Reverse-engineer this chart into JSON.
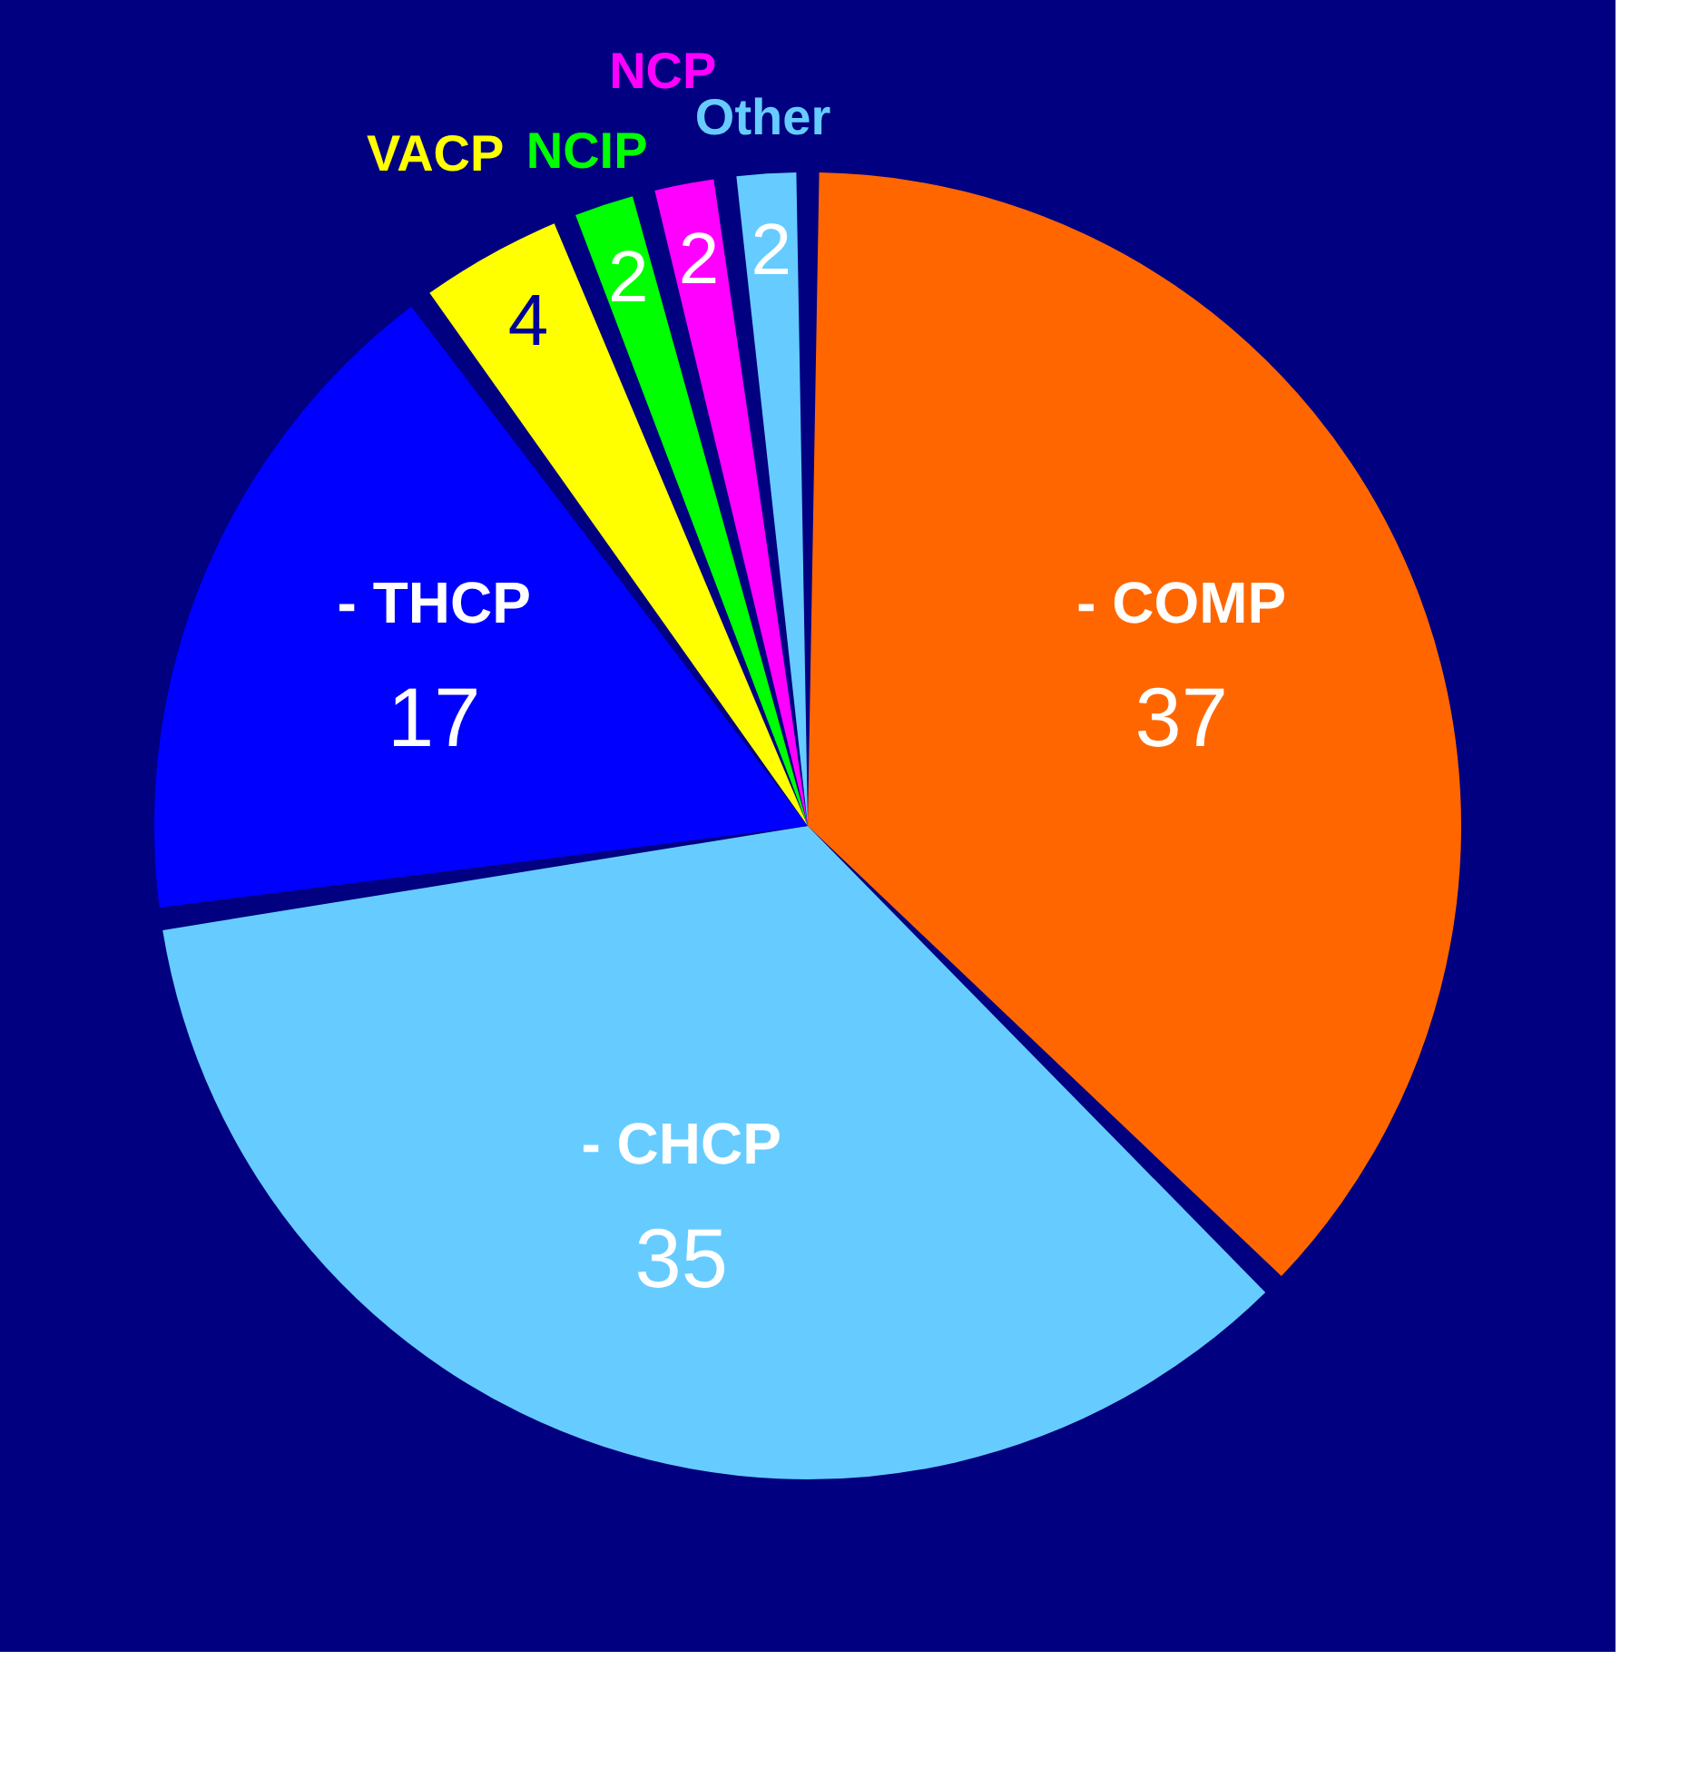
{
  "chart_data": {
    "type": "pie",
    "categories": [
      "- COMP",
      "- CHCP",
      "- THCP",
      "VACP",
      "NCIP",
      "NCP",
      "Other"
    ],
    "values": [
      37,
      35,
      17,
      4,
      2,
      2,
      2
    ],
    "colors": [
      "#ff6600",
      "#66ccff",
      "#0000ff",
      "#ffff00",
      "#00ff00",
      "#ff00ff",
      "#66ccff"
    ],
    "data_labels": true,
    "legend": false
  }
}
